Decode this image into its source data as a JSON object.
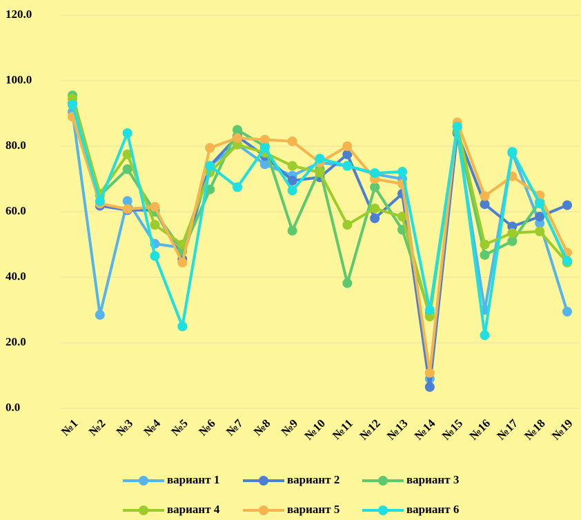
{
  "chart_data": {
    "type": "line",
    "categories": [
      "№1",
      "№2",
      "№3",
      "№4",
      "№5",
      "№6",
      "№7",
      "№8",
      "№9",
      "№10",
      "№11",
      "№12",
      "№13",
      "№14",
      "№15",
      "№16",
      "№17",
      "№18",
      "№19"
    ],
    "series": [
      {
        "name": "вариант 1",
        "color": "#55b4ec",
        "values": [
          90.5,
          28.5,
          63.3,
          50.2,
          49,
          74,
          80.5,
          74.5,
          71,
          75,
          74,
          71.5,
          70,
          9,
          84,
          30,
          78,
          56.5,
          29.5
        ]
      },
      {
        "name": "вариант 2",
        "color": "#4a7fd4",
        "values": [
          93,
          61.8,
          60.5,
          60.5,
          45.5,
          74,
          83,
          77,
          69.5,
          70.5,
          77.5,
          58,
          65.5,
          6.5,
          84,
          62.3,
          55.5,
          58.5,
          62
        ]
      },
      {
        "name": "вариант 3",
        "color": "#5cc870",
        "values": [
          95.5,
          65,
          73,
          60,
          48,
          66.8,
          85,
          80,
          54.2,
          73,
          38.2,
          67.5,
          54.5,
          29,
          84.5,
          46.8,
          51,
          63,
          44.5
        ]
      },
      {
        "name": "вариант 4",
        "color": "#9ccc2c",
        "values": [
          94.5,
          65.5,
          77.5,
          56,
          50,
          72,
          80.5,
          78,
          74,
          72,
          56,
          61,
          58.5,
          28,
          86,
          50,
          53.5,
          54,
          44.5
        ]
      },
      {
        "name": "вариант 5",
        "color": "#f5b54e",
        "values": [
          89,
          62.5,
          60.8,
          61.5,
          44.5,
          79.5,
          82.5,
          82,
          81.5,
          75,
          80,
          70,
          68.5,
          10.8,
          87.3,
          64.8,
          70.8,
          65,
          47.5
        ]
      },
      {
        "name": "вариант 6",
        "color": "#1fe0e0",
        "values": [
          92.7,
          63.2,
          84,
          46.5,
          25,
          74,
          67.5,
          79.5,
          66.5,
          76.2,
          74,
          71.8,
          72.2,
          30,
          86,
          22.3,
          78.3,
          62.5,
          45
        ]
      }
    ],
    "ylim": [
      0,
      120
    ],
    "yticks": [
      {
        "value": 0,
        "label": "0.0"
      },
      {
        "value": 20,
        "label": "20.0"
      },
      {
        "value": 40,
        "label": "40.0"
      },
      {
        "value": 60,
        "label": "60.0"
      },
      {
        "value": 80,
        "label": "80.0"
      },
      {
        "value": 100,
        "label": "100.0"
      },
      {
        "value": 120,
        "label": "120.0"
      }
    ],
    "grid": true
  }
}
